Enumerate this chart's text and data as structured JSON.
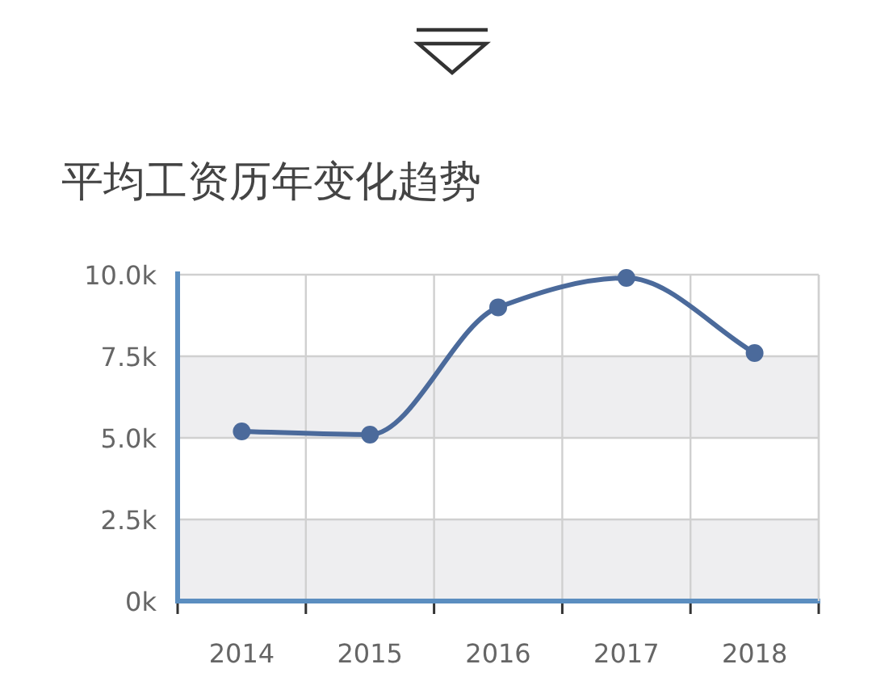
{
  "chart_data": {
    "type": "line",
    "title": "平均工资历年变化趋势",
    "categories": [
      "2014",
      "2015",
      "2016",
      "2017",
      "2018"
    ],
    "values": [
      5200,
      5100,
      9000,
      9900,
      7600
    ],
    "color": "#4b6a9b",
    "ylim": [
      0,
      10000
    ],
    "yticks": [
      {
        "value": 0,
        "label": "0k"
      },
      {
        "value": 2500,
        "label": "2.5k"
      },
      {
        "value": 5000,
        "label": "5.0k"
      },
      {
        "value": 7500,
        "label": "7.5k"
      },
      {
        "value": 10000,
        "label": "10.0k"
      }
    ],
    "grid": true,
    "marker": "circle",
    "line_style": "solid",
    "bands": [
      {
        "axis": "y",
        "from": 0,
        "to": 2500,
        "color": "#eeeef0"
      },
      {
        "axis": "y",
        "from": 5000,
        "to": 7500,
        "color": "#eeeef0"
      }
    ]
  }
}
